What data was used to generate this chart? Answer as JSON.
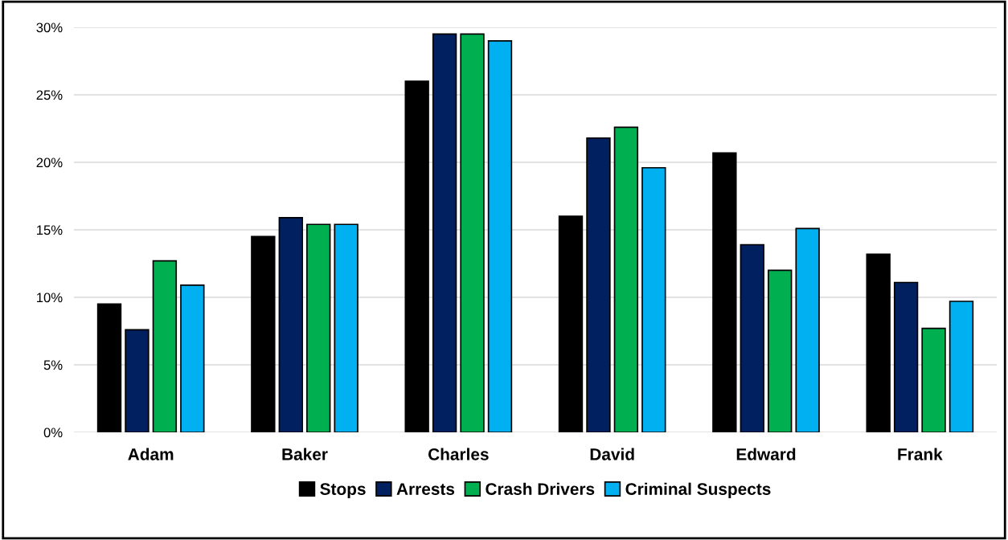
{
  "chart_data": {
    "type": "bar",
    "categories": [
      "Adam",
      "Baker",
      "Charles",
      "David",
      "Edward",
      "Frank"
    ],
    "series": [
      {
        "name": "Stops",
        "color": "#000000",
        "values": [
          9.5,
          14.5,
          26.0,
          16.0,
          20.7,
          13.2
        ]
      },
      {
        "name": "Arrests",
        "color": "#002060",
        "values": [
          7.6,
          15.9,
          29.5,
          21.8,
          13.9,
          11.1
        ]
      },
      {
        "name": "Crash Drivers",
        "color": "#00b050",
        "values": [
          12.7,
          15.4,
          29.5,
          22.6,
          12.0,
          7.7
        ]
      },
      {
        "name": "Criminal Suspects",
        "color": "#00b0f0",
        "values": [
          10.9,
          15.4,
          29.0,
          19.6,
          15.1,
          9.7
        ]
      }
    ],
    "ylim": [
      0,
      30
    ],
    "yticks": [
      {
        "value": 0,
        "label": "0%"
      },
      {
        "value": 5,
        "label": "5%"
      },
      {
        "value": 10,
        "label": "10%"
      },
      {
        "value": 15,
        "label": "15%"
      },
      {
        "value": 20,
        "label": "20%"
      },
      {
        "value": 25,
        "label": "25%"
      },
      {
        "value": 30,
        "label": "30%"
      }
    ],
    "grid": "y",
    "legend": "bottom"
  }
}
